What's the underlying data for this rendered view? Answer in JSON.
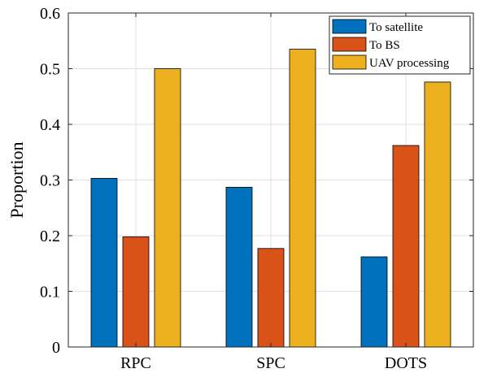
{
  "chart_data": {
    "type": "bar",
    "title": "",
    "xlabel": "",
    "ylabel": "Proportion",
    "ylim": [
      0,
      0.6
    ],
    "yticks": [
      "0",
      "0.1",
      "0.2",
      "0.3",
      "0.4",
      "0.5",
      "0.6"
    ],
    "categories": [
      "RPC",
      "SPC",
      "DOTS"
    ],
    "grid": true,
    "legend_position": "top-right",
    "series": [
      {
        "name": "To satellite",
        "color": "#0072BD",
        "values": [
          0.303,
          0.287,
          0.162
        ]
      },
      {
        "name": "To BS",
        "color": "#D95319",
        "values": [
          0.198,
          0.177,
          0.362
        ]
      },
      {
        "name": "UAV processing",
        "color": "#EDB120",
        "values": [
          0.5,
          0.535,
          0.476
        ]
      }
    ]
  }
}
